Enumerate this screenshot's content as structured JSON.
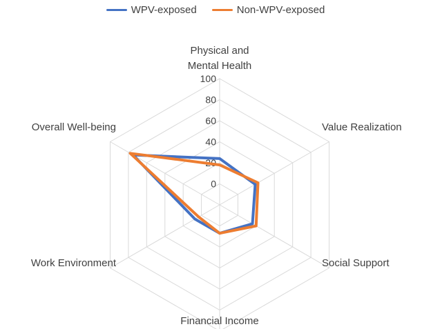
{
  "chart_data": {
    "type": "radar",
    "categories": [
      "Physical and Mental Health",
      "Value Realization",
      "Social Support",
      "Financial Income",
      "Work Environment",
      "Overall Well-being"
    ],
    "axis_labels": [
      [
        "Physical and",
        "Mental Health"
      ],
      [
        "Value Realization"
      ],
      [
        "Social Support"
      ],
      [
        "Financial Income"
      ],
      [
        "Work Environment"
      ],
      [
        "Overall Well-being"
      ]
    ],
    "ticks": [
      0,
      20,
      40,
      60,
      80,
      100
    ],
    "rlim": [
      -20,
      100
    ],
    "grid": true,
    "legend_position": "top",
    "series": [
      {
        "name": "WPV-exposed",
        "color": "#4472C4",
        "values": [
          24,
          19,
          16,
          7,
          7,
          75
        ]
      },
      {
        "name": "Non-WPV-exposed",
        "color": "#ED7D31",
        "values": [
          18,
          22,
          20,
          7,
          3,
          78
        ]
      }
    ]
  }
}
